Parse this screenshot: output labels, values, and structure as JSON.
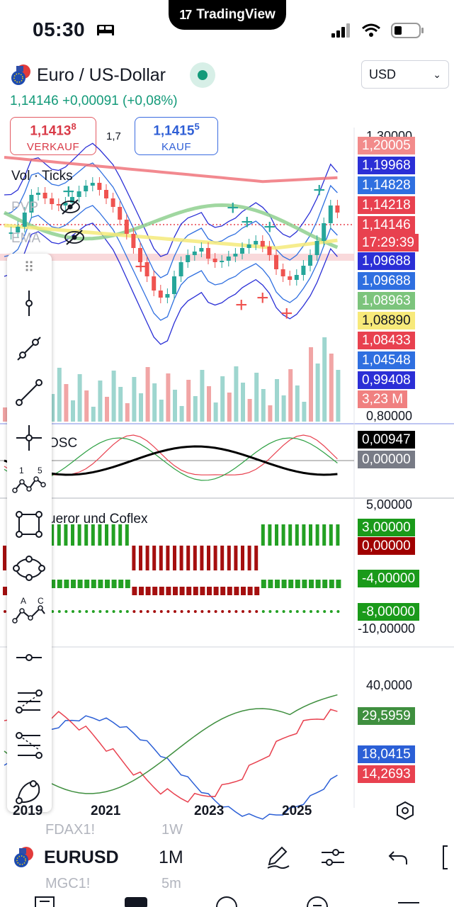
{
  "status": {
    "time": "05:30"
  },
  "island": {
    "brand": "TradingView"
  },
  "header": {
    "symbol_name": "Euro / US-Dollar",
    "currency": "USD",
    "price_line": "1,14146 +0,00091 (+0,08%)",
    "sell": {
      "price_main": "1,1413",
      "price_sup": "8",
      "label": "VERKAUF"
    },
    "spread": "1,7",
    "buy": {
      "price_main": "1,1415",
      "price_sup": "5",
      "label": "KAUF"
    }
  },
  "panes": {
    "main_labels": [
      "Vol · Ticks",
      "PVP",
      "EMA"
    ],
    "osc_label": "OSC",
    "coflex_label": "ueror und Coflex"
  },
  "axis_labels": {
    "top": "1,30000",
    "vol_bottom": "0,80000",
    "coflex_top": "5,00000",
    "coflex_bottom": "-10,00000",
    "last_top": "40,0000"
  },
  "price_badges": [
    {
      "text": "1,20005",
      "color": "#f28b8b"
    },
    {
      "text": "1,19968",
      "color": "#2b2fd6"
    },
    {
      "text": "1,14828",
      "color": "#2f6fe0"
    },
    {
      "text": "1,14218",
      "color": "#e8414f"
    },
    {
      "text": "1,14146",
      "color": "#e8414f"
    },
    {
      "text": "17:29:39",
      "color": "#e8414f"
    },
    {
      "text": "1,09688",
      "color": "#2b2fd6"
    },
    {
      "text": "1,09688",
      "color": "#2f6fe0"
    },
    {
      "text": "1,08963",
      "color": "#7cc47c"
    },
    {
      "text": "1,08890",
      "color": "#f7e97a"
    },
    {
      "text": "1,08433",
      "color": "#e8414f"
    },
    {
      "text": "1,04548",
      "color": "#2f6fe0"
    },
    {
      "text": "0,99408",
      "color": "#2b2fd6"
    },
    {
      "text": "3,23 M",
      "color": "#f08080"
    }
  ],
  "osc_badges": [
    {
      "text": "0,00947",
      "color": "#000000"
    },
    {
      "text": "0,00000",
      "color": "#787b86"
    }
  ],
  "coflex_badges": [
    {
      "text": "3,00000",
      "color": "#1a9a1a"
    },
    {
      "text": "0,00000",
      "color": "#a00000"
    },
    {
      "text": "-4,00000",
      "color": "#1a9a1a"
    },
    {
      "text": "-8,00000",
      "color": "#1a9a1a"
    }
  ],
  "last_badges": [
    {
      "text": "29,5959",
      "color": "#3f8f3f"
    },
    {
      "text": "18,0415",
      "color": "#2b5fd6"
    },
    {
      "text": "14,2693",
      "color": "#e8414f"
    }
  ],
  "time_axis": [
    "2019",
    "2021",
    "2023",
    "2025"
  ],
  "toolbar": {
    "tools": [
      "vertical-line",
      "trend-line",
      "ray",
      "crosshair",
      "pattern-1-5",
      "rectangle",
      "ellipse",
      "abc-pattern",
      "horizontal-ray",
      "fib-retracement",
      "gann-fan",
      "brush"
    ],
    "pattern_labels": {
      "one": "1",
      "five": "5",
      "a": "A",
      "c": "C"
    }
  },
  "bottom": {
    "symbol": "EURUSD",
    "interval": "1M",
    "ghost_symbol_1": "FDAX1!",
    "ghost_interval_1": "1W",
    "ghost_symbol_2": "MGC1!",
    "ghost_interval_2": "5m"
  },
  "colors": {
    "up": "#26a69a",
    "down": "#ef5350",
    "accent": "#2962ff"
  }
}
